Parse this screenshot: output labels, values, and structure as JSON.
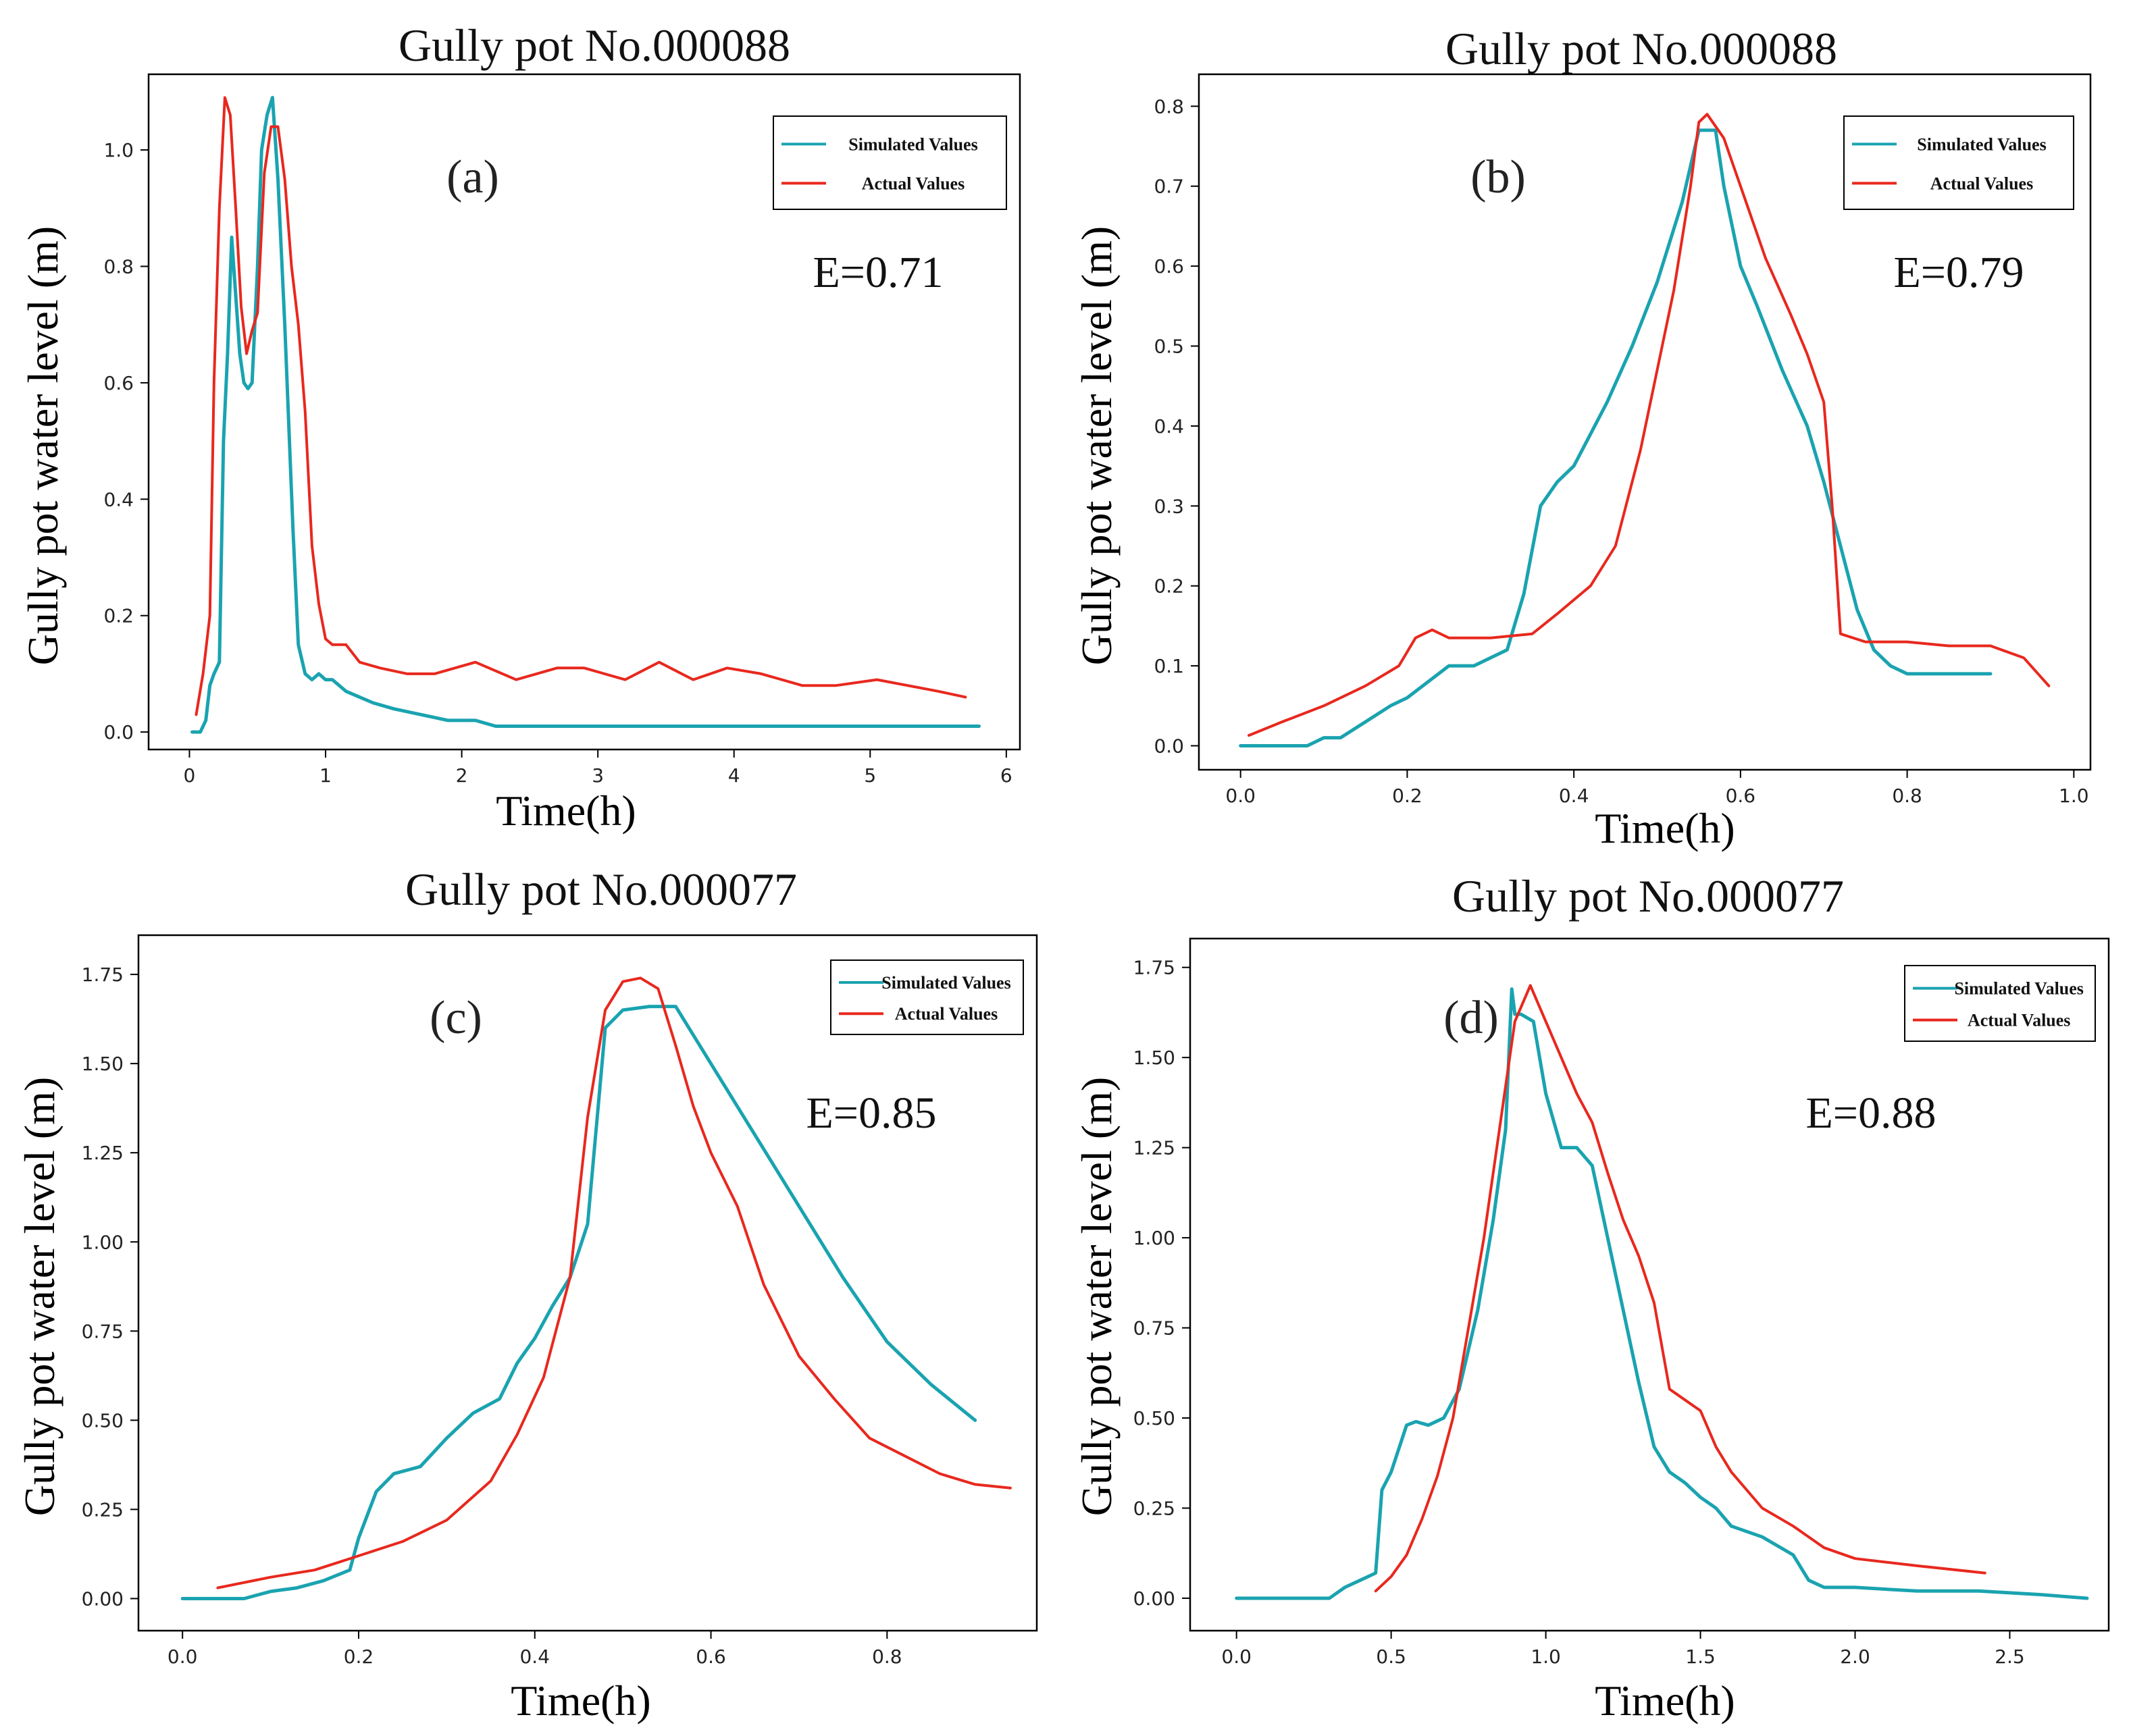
{
  "figure": {
    "colors": {
      "simulated": "#1aa3b0",
      "actual": "#e8281e",
      "axis": "#000000"
    }
  },
  "chart_data": [
    {
      "type": "line",
      "panel": "(a)",
      "title": "Gully pot No.000088",
      "xlabel": "Time(h)",
      "ylabel": "Gully pot water level (m)",
      "metric": "E=0.71",
      "xlim": [
        -0.3,
        6.1
      ],
      "ylim": [
        -0.03,
        1.13
      ],
      "xticks": [
        0,
        1,
        2,
        3,
        4,
        5,
        6
      ],
      "xtick_labels": [
        "0",
        "1",
        "2",
        "3",
        "4",
        "5",
        "6"
      ],
      "yticks": [
        0,
        0.2,
        0.4,
        0.6,
        0.8,
        1.0
      ],
      "ytick_labels": [
        "0.0",
        "0.2",
        "0.4",
        "0.6",
        "0.8",
        "1.0"
      ],
      "legend": [
        "Simulated Values",
        "Actual Values"
      ],
      "series": [
        {
          "name": "Simulated Values",
          "x": [
            0.02,
            0.08,
            0.12,
            0.15,
            0.18,
            0.22,
            0.25,
            0.28,
            0.31,
            0.34,
            0.37,
            0.4,
            0.43,
            0.46,
            0.5,
            0.53,
            0.57,
            0.61,
            0.65,
            0.7,
            0.76,
            0.8,
            0.85,
            0.9,
            0.95,
            1.0,
            1.05,
            1.15,
            1.25,
            1.35,
            1.5,
            1.7,
            1.9,
            2.1,
            2.25,
            3,
            4,
            5,
            5.8
          ],
          "y": [
            0.0,
            0.0,
            0.02,
            0.08,
            0.1,
            0.12,
            0.5,
            0.65,
            0.85,
            0.75,
            0.65,
            0.6,
            0.59,
            0.6,
            0.8,
            1.0,
            1.06,
            1.09,
            0.95,
            0.7,
            0.35,
            0.15,
            0.1,
            0.09,
            0.1,
            0.09,
            0.09,
            0.07,
            0.06,
            0.05,
            0.04,
            0.03,
            0.02,
            0.02,
            0.01,
            0.01,
            0.01,
            0.01,
            0.01
          ]
        },
        {
          "name": "Actual Values",
          "x": [
            0.05,
            0.1,
            0.15,
            0.18,
            0.22,
            0.26,
            0.3,
            0.34,
            0.38,
            0.42,
            0.46,
            0.5,
            0.55,
            0.6,
            0.65,
            0.7,
            0.75,
            0.8,
            0.85,
            0.9,
            0.95,
            1.0,
            1.05,
            1.15,
            1.25,
            1.4,
            1.6,
            1.8,
            2.1,
            2.4,
            2.7,
            2.9,
            3.2,
            3.45,
            3.7,
            3.95,
            4.2,
            4.5,
            4.75,
            5.05,
            5.5,
            5.7
          ],
          "y": [
            0.03,
            0.1,
            0.2,
            0.6,
            0.9,
            1.09,
            1.06,
            0.9,
            0.73,
            0.65,
            0.69,
            0.72,
            0.96,
            1.04,
            1.04,
            0.95,
            0.8,
            0.7,
            0.55,
            0.32,
            0.22,
            0.16,
            0.15,
            0.15,
            0.12,
            0.11,
            0.1,
            0.1,
            0.12,
            0.09,
            0.11,
            0.11,
            0.09,
            0.12,
            0.09,
            0.11,
            0.1,
            0.08,
            0.08,
            0.09,
            0.07,
            0.06
          ]
        }
      ]
    },
    {
      "type": "line",
      "panel": "(b)",
      "title": "Gully pot No.000088",
      "xlabel": "Time(h)",
      "ylabel": "Gully pot water level (m)",
      "metric": "E=0.79",
      "xlim": [
        -0.05,
        1.02
      ],
      "ylim": [
        -0.03,
        0.84
      ],
      "xticks": [
        0,
        0.2,
        0.4,
        0.6,
        0.8,
        1.0
      ],
      "xtick_labels": [
        "0.0",
        "0.2",
        "0.4",
        "0.6",
        "0.8",
        "1.0"
      ],
      "yticks": [
        0,
        0.1,
        0.2,
        0.3,
        0.4,
        0.5,
        0.6,
        0.7,
        0.8
      ],
      "ytick_labels": [
        "0.0",
        "0.1",
        "0.2",
        "0.3",
        "0.4",
        "0.5",
        "0.6",
        "0.7",
        "0.8"
      ],
      "legend": [
        "Simulated Values",
        "Actual Values"
      ],
      "series": [
        {
          "name": "Simulated Values",
          "x": [
            0.0,
            0.08,
            0.1,
            0.12,
            0.15,
            0.18,
            0.2,
            0.25,
            0.28,
            0.32,
            0.34,
            0.36,
            0.38,
            0.4,
            0.42,
            0.44,
            0.47,
            0.5,
            0.53,
            0.55,
            0.56,
            0.57,
            0.58,
            0.6,
            0.62,
            0.65,
            0.68,
            0.7,
            0.72,
            0.74,
            0.76,
            0.78,
            0.8,
            0.9
          ],
          "y": [
            0.0,
            0.0,
            0.01,
            0.01,
            0.03,
            0.05,
            0.06,
            0.1,
            0.1,
            0.12,
            0.19,
            0.3,
            0.33,
            0.35,
            0.39,
            0.43,
            0.5,
            0.58,
            0.68,
            0.77,
            0.77,
            0.77,
            0.7,
            0.6,
            0.55,
            0.47,
            0.4,
            0.33,
            0.25,
            0.17,
            0.12,
            0.1,
            0.09,
            0.09
          ]
        },
        {
          "name": "Actual Values",
          "x": [
            0.01,
            0.05,
            0.1,
            0.15,
            0.19,
            0.21,
            0.23,
            0.25,
            0.3,
            0.35,
            0.38,
            0.42,
            0.45,
            0.48,
            0.5,
            0.52,
            0.54,
            0.55,
            0.56,
            0.58,
            0.6,
            0.63,
            0.66,
            0.68,
            0.7,
            0.71,
            0.72,
            0.75,
            0.8,
            0.85,
            0.9,
            0.94,
            0.97
          ],
          "y": [
            0.013,
            0.03,
            0.05,
            0.075,
            0.1,
            0.135,
            0.145,
            0.135,
            0.135,
            0.14,
            0.165,
            0.2,
            0.25,
            0.37,
            0.47,
            0.57,
            0.7,
            0.78,
            0.79,
            0.76,
            0.7,
            0.61,
            0.54,
            0.49,
            0.43,
            0.3,
            0.14,
            0.13,
            0.13,
            0.125,
            0.125,
            0.11,
            0.075
          ]
        }
      ]
    },
    {
      "type": "line",
      "panel": "(c)",
      "title": "Gully pot No.000077",
      "xlabel": "Time(h)",
      "ylabel": "Gully pot water level (m)",
      "metric": "E=0.85",
      "xlim": [
        -0.05,
        0.97
      ],
      "ylim": [
        -0.09,
        1.86
      ],
      "xticks": [
        0,
        0.2,
        0.4,
        0.6,
        0.8
      ],
      "xtick_labels": [
        "0.0",
        "0.2",
        "0.4",
        "0.6",
        "0.8"
      ],
      "yticks": [
        0,
        0.25,
        0.5,
        0.75,
        1.0,
        1.25,
        1.5,
        1.75
      ],
      "ytick_labels": [
        "0.00",
        "0.25",
        "0.50",
        "0.75",
        "1.00",
        "1.25",
        "1.50",
        "1.75"
      ],
      "legend": [
        "Simulated Values",
        "Actual Values"
      ],
      "series": [
        {
          "name": "Simulated Values",
          "x": [
            0.0,
            0.07,
            0.1,
            0.13,
            0.16,
            0.19,
            0.2,
            0.22,
            0.24,
            0.27,
            0.3,
            0.33,
            0.36,
            0.38,
            0.4,
            0.42,
            0.44,
            0.46,
            0.48,
            0.5,
            0.53,
            0.56,
            0.6,
            0.65,
            0.7,
            0.75,
            0.8,
            0.85,
            0.9
          ],
          "y": [
            0.0,
            0.0,
            0.02,
            0.03,
            0.05,
            0.08,
            0.17,
            0.3,
            0.35,
            0.37,
            0.45,
            0.52,
            0.56,
            0.66,
            0.73,
            0.82,
            0.9,
            1.05,
            1.6,
            1.65,
            1.66,
            1.66,
            1.5,
            1.3,
            1.1,
            0.9,
            0.72,
            0.6,
            0.5
          ]
        },
        {
          "name": "Actual Values",
          "x": [
            0.04,
            0.1,
            0.15,
            0.2,
            0.25,
            0.3,
            0.35,
            0.38,
            0.41,
            0.44,
            0.46,
            0.48,
            0.5,
            0.52,
            0.54,
            0.56,
            0.58,
            0.6,
            0.63,
            0.66,
            0.7,
            0.74,
            0.78,
            0.82,
            0.86,
            0.9,
            0.94
          ],
          "y": [
            0.03,
            0.06,
            0.08,
            0.12,
            0.16,
            0.22,
            0.33,
            0.46,
            0.62,
            0.9,
            1.35,
            1.65,
            1.73,
            1.74,
            1.71,
            1.55,
            1.38,
            1.25,
            1.1,
            0.88,
            0.68,
            0.56,
            0.45,
            0.4,
            0.35,
            0.32,
            0.31
          ]
        }
      ]
    },
    {
      "type": "line",
      "panel": "(d)",
      "title": "Gully pot No.000077",
      "xlabel": "Time(h)",
      "ylabel": "Gully pot water level (m)",
      "metric": "E=0.88",
      "xlim": [
        -0.15,
        2.82
      ],
      "ylim": [
        -0.09,
        1.83
      ],
      "xticks": [
        0,
        0.5,
        1.0,
        1.5,
        2.0,
        2.5
      ],
      "xtick_labels": [
        "0.0",
        "0.5",
        "1.0",
        "1.5",
        "2.0",
        "2.5"
      ],
      "yticks": [
        0,
        0.25,
        0.5,
        0.75,
        1.0,
        1.25,
        1.5,
        1.75
      ],
      "ytick_labels": [
        "0.00",
        "0.25",
        "0.50",
        "0.75",
        "1.00",
        "1.25",
        "1.50",
        "1.75"
      ],
      "legend": [
        "Simulated Values",
        "Actual Values"
      ],
      "series": [
        {
          "name": "Simulated Values",
          "x": [
            0.0,
            0.3,
            0.35,
            0.4,
            0.45,
            0.47,
            0.5,
            0.55,
            0.58,
            0.62,
            0.67,
            0.72,
            0.78,
            0.83,
            0.87,
            0.89,
            0.9,
            0.92,
            0.96,
            1.0,
            1.05,
            1.1,
            1.15,
            1.2,
            1.25,
            1.3,
            1.35,
            1.4,
            1.45,
            1.5,
            1.55,
            1.6,
            1.7,
            1.8,
            1.85,
            1.9,
            2.0,
            2.2,
            2.4,
            2.6,
            2.75
          ],
          "y": [
            0.0,
            0.0,
            0.03,
            0.05,
            0.07,
            0.3,
            0.35,
            0.48,
            0.49,
            0.48,
            0.5,
            0.58,
            0.8,
            1.05,
            1.3,
            1.69,
            1.62,
            1.62,
            1.6,
            1.4,
            1.25,
            1.25,
            1.2,
            1.0,
            0.8,
            0.6,
            0.42,
            0.35,
            0.32,
            0.28,
            0.25,
            0.2,
            0.17,
            0.12,
            0.05,
            0.03,
            0.03,
            0.02,
            0.02,
            0.01,
            0.0
          ]
        },
        {
          "name": "Actual Values",
          "x": [
            0.45,
            0.5,
            0.55,
            0.6,
            0.65,
            0.7,
            0.75,
            0.8,
            0.85,
            0.9,
            0.95,
            1.0,
            1.05,
            1.1,
            1.15,
            1.2,
            1.25,
            1.3,
            1.35,
            1.4,
            1.45,
            1.5,
            1.55,
            1.6,
            1.7,
            1.8,
            1.9,
            2.0,
            2.2,
            2.42
          ],
          "y": [
            0.02,
            0.06,
            0.12,
            0.22,
            0.34,
            0.5,
            0.75,
            1.0,
            1.3,
            1.6,
            1.7,
            1.6,
            1.5,
            1.4,
            1.32,
            1.18,
            1.05,
            0.95,
            0.82,
            0.58,
            0.55,
            0.52,
            0.42,
            0.35,
            0.25,
            0.2,
            0.14,
            0.11,
            0.09,
            0.07
          ]
        }
      ]
    }
  ]
}
